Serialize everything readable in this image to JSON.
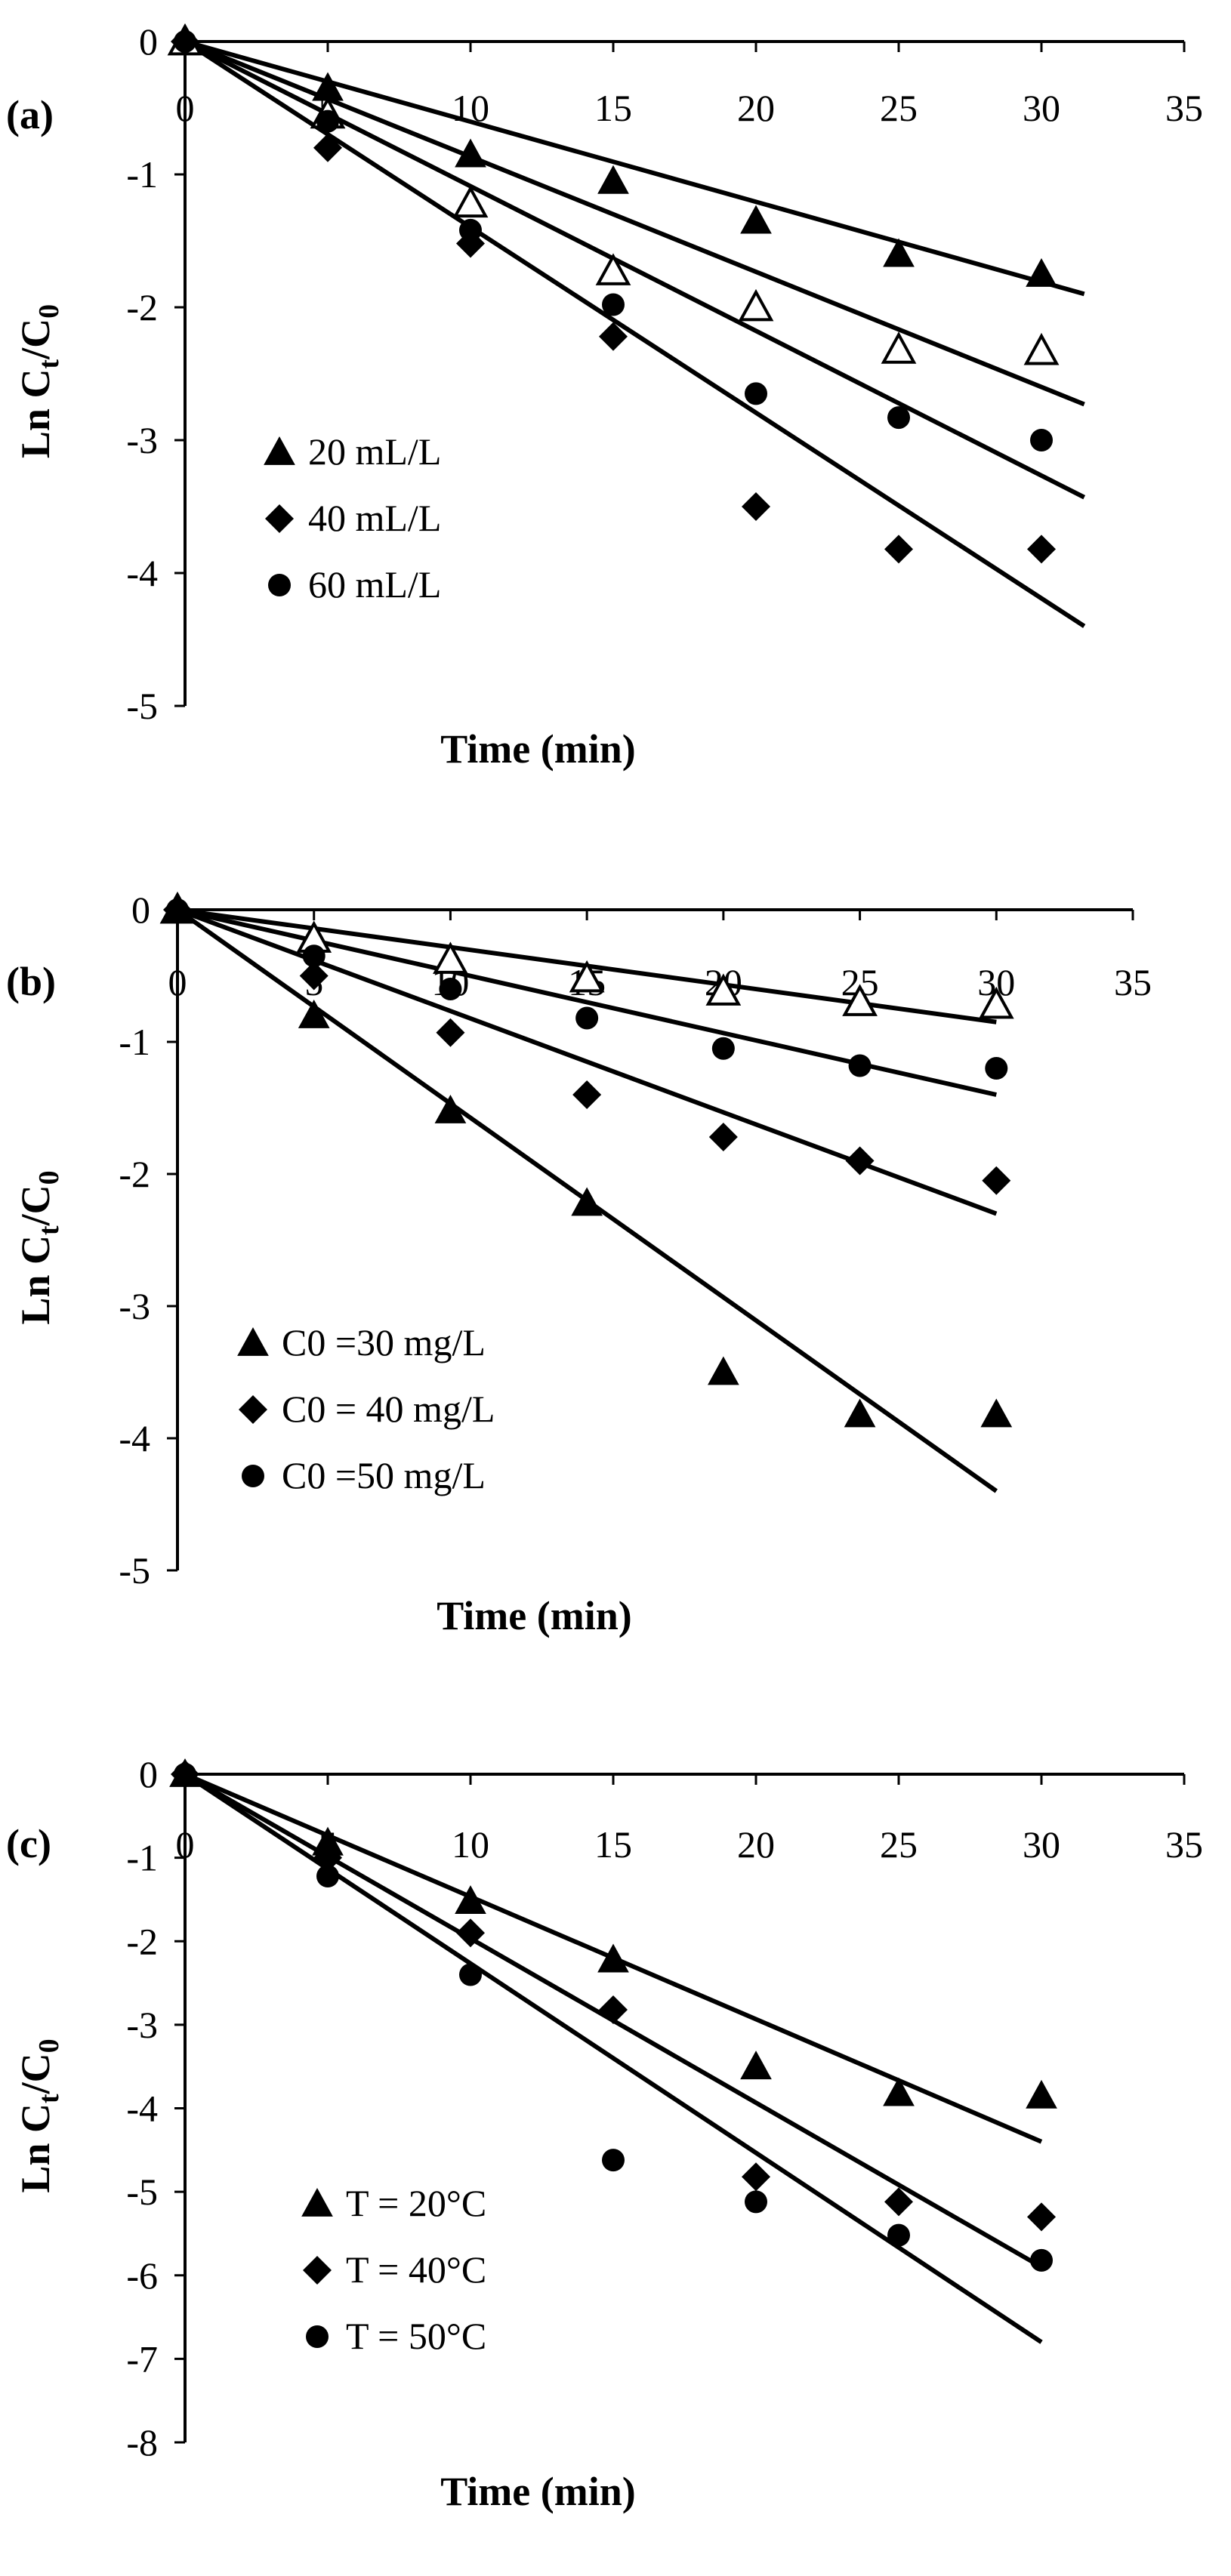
{
  "figure_title": "",
  "chart_data": [
    {
      "type": "scatter",
      "panel_label": "(a)",
      "xlabel": "Time (min)",
      "ylabel": {
        "base": "Ln C",
        "sub1": "t",
        "mid": "/C",
        "sub2": "0"
      },
      "xlim": [
        0,
        35
      ],
      "ylim": [
        -5,
        0
      ],
      "xticks": [
        0,
        5,
        10,
        15,
        20,
        25,
        30,
        35
      ],
      "yticks": [
        0,
        -1,
        -2,
        -3,
        -4,
        -5
      ],
      "grid": false,
      "legend_position": "lower-left",
      "series": [
        {
          "name": "20 mL/L",
          "marker": "triangle",
          "legend": true,
          "points": [
            [
              0,
              0
            ],
            [
              5,
              -0.35
            ],
            [
              10,
              -0.85
            ],
            [
              15,
              -1.05
            ],
            [
              20,
              -1.35
            ],
            [
              25,
              -1.6
            ],
            [
              30,
              -1.75
            ]
          ],
          "fit": [
            [
              0,
              0
            ],
            [
              31.5,
              -1.9
            ]
          ]
        },
        {
          "name": "",
          "marker": "triangle-open",
          "legend": false,
          "points": [
            [
              0,
              0
            ],
            [
              5,
              -0.55
            ],
            [
              10,
              -1.22
            ],
            [
              15,
              -1.73
            ],
            [
              20,
              -2.0
            ],
            [
              25,
              -2.32
            ],
            [
              30,
              -2.33
            ]
          ],
          "fit": [
            [
              0,
              0
            ],
            [
              31.5,
              -2.73
            ]
          ]
        },
        {
          "name": "60 mL/L",
          "marker": "circle",
          "legend": true,
          "points": [
            [
              0,
              0
            ],
            [
              5,
              -0.6
            ],
            [
              10,
              -1.42
            ],
            [
              15,
              -1.98
            ],
            [
              20,
              -2.65
            ],
            [
              25,
              -2.83
            ],
            [
              30,
              -3.0
            ]
          ],
          "fit": [
            [
              0,
              0
            ],
            [
              31.5,
              -3.43
            ]
          ]
        },
        {
          "name": "40 mL/L",
          "marker": "diamond",
          "legend": true,
          "points": [
            [
              0,
              0
            ],
            [
              5,
              -0.8
            ],
            [
              10,
              -1.52
            ],
            [
              15,
              -2.22
            ],
            [
              20,
              -3.5
            ],
            [
              25,
              -3.82
            ],
            [
              30,
              -3.82
            ]
          ],
          "fit": [
            [
              0,
              0
            ],
            [
              31.5,
              -4.4
            ]
          ]
        }
      ],
      "legend_order": [
        "20 mL/L",
        "40 mL/L",
        "60 mL/L"
      ]
    },
    {
      "type": "scatter",
      "panel_label": "(b)",
      "xlabel": "Time (min)",
      "ylabel": {
        "base": "Ln C",
        "sub1": "t",
        "mid": "/C",
        "sub2": "0"
      },
      "xlim": [
        0,
        35
      ],
      "ylim": [
        -5,
        0
      ],
      "xticks": [
        0,
        5,
        10,
        15,
        20,
        25,
        30,
        35
      ],
      "yticks": [
        0,
        -1,
        -2,
        -3,
        -4,
        -5
      ],
      "grid": false,
      "legend_position": "lower-left",
      "series": [
        {
          "name": "",
          "marker": "triangle-open",
          "legend": false,
          "points": [
            [
              0,
              0
            ],
            [
              5,
              -0.22
            ],
            [
              10,
              -0.38
            ],
            [
              15,
              -0.52
            ],
            [
              20,
              -0.62
            ],
            [
              25,
              -0.7
            ],
            [
              30,
              -0.72
            ]
          ],
          "fit": [
            [
              0,
              0
            ],
            [
              30,
              -0.85
            ]
          ]
        },
        {
          "name": "C0 =50 mg/L",
          "marker": "circle",
          "legend": true,
          "points": [
            [
              0,
              0
            ],
            [
              5,
              -0.35
            ],
            [
              10,
              -0.6
            ],
            [
              15,
              -0.82
            ],
            [
              20,
              -1.05
            ],
            [
              25,
              -1.18
            ],
            [
              30,
              -1.2
            ]
          ],
          "fit": [
            [
              0,
              0
            ],
            [
              30,
              -1.4
            ]
          ]
        },
        {
          "name": "C0 = 40 mg/L",
          "marker": "diamond",
          "legend": true,
          "points": [
            [
              0,
              0
            ],
            [
              5,
              -0.5
            ],
            [
              10,
              -0.93
            ],
            [
              15,
              -1.4
            ],
            [
              20,
              -1.72
            ],
            [
              25,
              -1.9
            ],
            [
              30,
              -2.05
            ]
          ],
          "fit": [
            [
              0,
              0
            ],
            [
              30,
              -2.3
            ]
          ]
        },
        {
          "name": "C0 =30 mg/L",
          "marker": "triangle",
          "legend": true,
          "points": [
            [
              0,
              0
            ],
            [
              5,
              -0.8
            ],
            [
              10,
              -1.52
            ],
            [
              15,
              -2.22
            ],
            [
              20,
              -3.5
            ],
            [
              25,
              -3.82
            ],
            [
              30,
              -3.82
            ]
          ],
          "fit": [
            [
              0,
              0
            ],
            [
              30,
              -4.4
            ]
          ]
        }
      ],
      "legend_order": [
        "C0 =30 mg/L",
        "C0 = 40 mg/L",
        "C0 =50 mg/L"
      ]
    },
    {
      "type": "scatter",
      "panel_label": "(c)",
      "xlabel": "Time (min)",
      "ylabel": {
        "base": "Ln C",
        "sub1": "t",
        "mid": "/C",
        "sub2": "0"
      },
      "xlim": [
        0,
        35
      ],
      "ylim": [
        -8,
        0
      ],
      "xticks": [
        0,
        5,
        10,
        15,
        20,
        25,
        30,
        35
      ],
      "yticks": [
        0,
        -1,
        -2,
        -3,
        -4,
        -5,
        -6,
        -7,
        -8
      ],
      "grid": false,
      "legend_position": "lower-left",
      "series": [
        {
          "name": "T = 20°C",
          "marker": "triangle",
          "legend": true,
          "points": [
            [
              0,
              0
            ],
            [
              5,
              -0.82
            ],
            [
              10,
              -1.52
            ],
            [
              15,
              -2.22
            ],
            [
              20,
              -3.5
            ],
            [
              25,
              -3.82
            ],
            [
              30,
              -3.85
            ]
          ],
          "fit": [
            [
              0,
              0
            ],
            [
              30,
              -4.4
            ]
          ]
        },
        {
          "name": "T = 40°C",
          "marker": "diamond",
          "legend": true,
          "points": [
            [
              0,
              0
            ],
            [
              5,
              -1.0
            ],
            [
              10,
              -1.9
            ],
            [
              15,
              -2.82
            ],
            [
              20,
              -4.82
            ],
            [
              25,
              -5.12
            ],
            [
              30,
              -5.3
            ]
          ],
          "fit": [
            [
              0,
              0
            ],
            [
              30,
              -5.9
            ]
          ]
        },
        {
          "name": "T = 50°C",
          "marker": "circle",
          "legend": true,
          "points": [
            [
              0,
              0
            ],
            [
              5,
              -1.22
            ],
            [
              10,
              -2.4
            ],
            [
              15,
              -4.62
            ],
            [
              20,
              -5.12
            ],
            [
              25,
              -5.52
            ],
            [
              30,
              -5.82
            ]
          ],
          "fit": [
            [
              0,
              0
            ],
            [
              30,
              -6.8
            ]
          ]
        }
      ],
      "legend_order": [
        "T = 20°C",
        "T = 40°C",
        "T = 50°C"
      ]
    }
  ]
}
